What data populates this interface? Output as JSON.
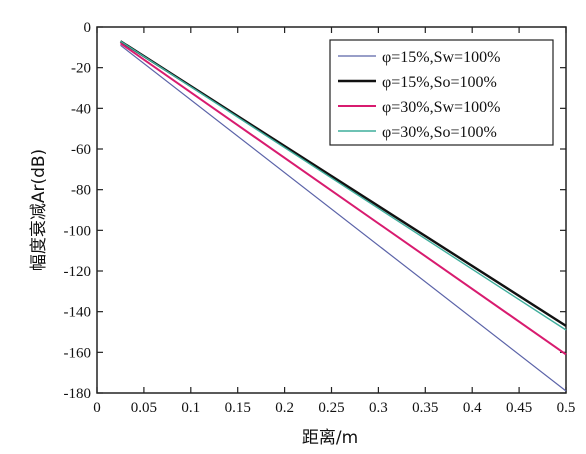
{
  "chart_data": {
    "type": "line",
    "xlabel": "距离/m",
    "ylabel": "幅度衰减Ar(dB)",
    "xlim": [
      0,
      0.5
    ],
    "ylim": [
      -180,
      0
    ],
    "x_ticks": [
      "0",
      "0.05",
      "0.1",
      "0.15",
      "0.2",
      "0.25",
      "0.3",
      "0.35",
      "0.4",
      "0.45",
      "0.5"
    ],
    "y_ticks": [
      "0",
      "-20",
      "-40",
      "-60",
      "-80",
      "-100",
      "-120",
      "-140",
      "-160",
      "-180"
    ],
    "grid": false,
    "legend_position": "top-right",
    "series": [
      {
        "name": "φ=15%,Sw=100%",
        "color": "#5b63a8",
        "line_width": 1.2,
        "x": [
          0.025,
          0.5
        ],
        "y": [
          -9,
          -179
        ]
      },
      {
        "name": "φ=15%,So=100%",
        "color": "#111111",
        "line_width": 2.4,
        "x": [
          0.025,
          0.5
        ],
        "y": [
          -7,
          -147
        ]
      },
      {
        "name": "φ=30%,Sw=100%",
        "color": "#d81b6f",
        "line_width": 2.0,
        "x": [
          0.025,
          0.5
        ],
        "y": [
          -8,
          -161
        ]
      },
      {
        "name": "φ=30%,So=100%",
        "color": "#3fae9c",
        "line_width": 1.4,
        "x": [
          0.025,
          0.5
        ],
        "y": [
          -7,
          -149
        ]
      }
    ]
  }
}
